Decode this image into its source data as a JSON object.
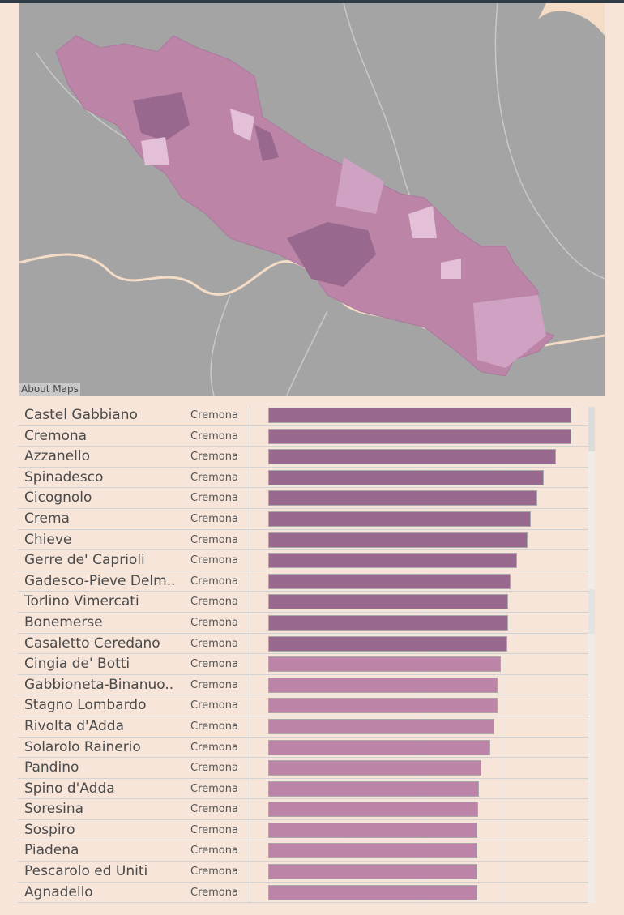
{
  "map": {
    "about_label": "About Maps"
  },
  "colors": {
    "high": "#98688f",
    "low": "#bc85a8",
    "map_bg": "#a4a4a4",
    "river": "#f4dcc6"
  },
  "axis_max": 4,
  "rows": [
    {
      "name": "Castel Gabbiano",
      "province": "Cremona",
      "value": 3.88,
      "tier": "high"
    },
    {
      "name": "Cremona",
      "province": "Cremona",
      "value": 3.88,
      "tier": "high"
    },
    {
      "name": "Azzanello",
      "province": "Cremona",
      "value": 3.68,
      "tier": "high"
    },
    {
      "name": "Spinadesco",
      "province": "Cremona",
      "value": 3.52,
      "tier": "high"
    },
    {
      "name": "Cicognolo",
      "province": "Cremona",
      "value": 3.44,
      "tier": "high"
    },
    {
      "name": "Crema",
      "province": "Cremona",
      "value": 3.36,
      "tier": "high"
    },
    {
      "name": "Chieve",
      "province": "Cremona",
      "value": 3.32,
      "tier": "high"
    },
    {
      "name": "Gerre de' Caprioli",
      "province": "Cremona",
      "value": 3.18,
      "tier": "high"
    },
    {
      "name": "Gadesco-Pieve Delm..",
      "province": "Cremona",
      "value": 3.1,
      "tier": "high"
    },
    {
      "name": "Torlino Vimercati",
      "province": "Cremona",
      "value": 3.07,
      "tier": "high"
    },
    {
      "name": "Bonemerse",
      "province": "Cremona",
      "value": 3.07,
      "tier": "high"
    },
    {
      "name": "Casaletto Ceredano",
      "province": "Cremona",
      "value": 3.06,
      "tier": "high"
    },
    {
      "name": "Cingia de' Botti",
      "province": "Cremona",
      "value": 2.97,
      "tier": "low"
    },
    {
      "name": "Gabbioneta-Binanuo..",
      "province": "Cremona",
      "value": 2.93,
      "tier": "low"
    },
    {
      "name": "Stagno Lombardo",
      "province": "Cremona",
      "value": 2.93,
      "tier": "low"
    },
    {
      "name": "Rivolta d'Adda",
      "province": "Cremona",
      "value": 2.89,
      "tier": "low"
    },
    {
      "name": "Solarolo Rainerio",
      "province": "Cremona",
      "value": 2.84,
      "tier": "low"
    },
    {
      "name": "Pandino",
      "province": "Cremona",
      "value": 2.73,
      "tier": "low"
    },
    {
      "name": "Spino d'Adda",
      "province": "Cremona",
      "value": 2.69,
      "tier": "low"
    },
    {
      "name": "Soresina",
      "province": "Cremona",
      "value": 2.68,
      "tier": "low"
    },
    {
      "name": "Sospiro",
      "province": "Cremona",
      "value": 2.67,
      "tier": "low"
    },
    {
      "name": "Piadena",
      "province": "Cremona",
      "value": 2.67,
      "tier": "low"
    },
    {
      "name": "Pescarolo ed Uniti",
      "province": "Cremona",
      "value": 2.67,
      "tier": "low"
    },
    {
      "name": "Agnadello",
      "province": "Cremona",
      "value": 2.67,
      "tier": "low"
    }
  ]
}
